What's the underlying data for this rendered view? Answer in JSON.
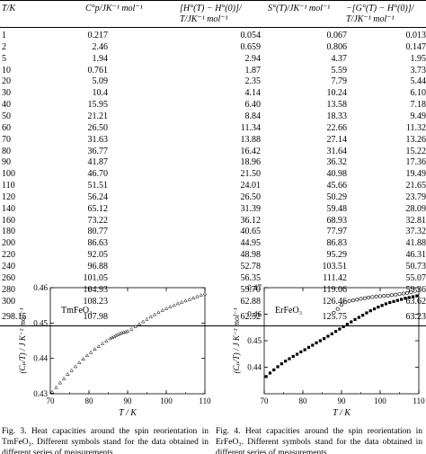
{
  "table": {
    "headers": {
      "t": "T/K",
      "cp": "C°p/JK⁻¹ mol⁻¹",
      "h_line1": "[H°(T) − H°(0)]/",
      "h_line2": "T/JK⁻¹ mol⁻¹",
      "s": "S°(T)/JK⁻¹ mol⁻¹",
      "g_line1": "−[G°(T) − H°(0)]/",
      "g_line2": "T/JK⁻¹ mol⁻¹"
    },
    "rows": [
      [
        "1",
        "0.217",
        "0.054",
        "0.067",
        "0.013"
      ],
      [
        "2",
        "2.46",
        "0.659",
        "0.806",
        "0.147"
      ],
      [
        "5",
        "1.94",
        "2.94",
        "4.37",
        "1.95"
      ],
      [
        "10",
        "0.761",
        "1.87",
        "5.59",
        "3.73"
      ],
      [
        "20",
        "5.09",
        "2.35",
        "7.79",
        "5.44"
      ],
      [
        "30",
        "10.4",
        "4.14",
        "10.24",
        "6.10"
      ],
      [
        "40",
        "15.95",
        "6.40",
        "13.58",
        "7.18"
      ],
      [
        "50",
        "21.21",
        "8.84",
        "18.33",
        "9.49"
      ],
      [
        "60",
        "26.50",
        "11.34",
        "22.66",
        "11.32"
      ],
      [
        "70",
        "31.63",
        "13.88",
        "27.14",
        "13.26"
      ],
      [
        "80",
        "36.77",
        "16.42",
        "31.64",
        "15.22"
      ],
      [
        "90",
        "41.87",
        "18.96",
        "36.32",
        "17.36"
      ],
      [
        "100",
        "46.70",
        "21.50",
        "40.98",
        "19.49"
      ],
      [
        "110",
        "51.51",
        "24.01",
        "45.66",
        "21.65"
      ],
      [
        "120",
        "56.24",
        "26.50",
        "50.29",
        "23.79"
      ],
      [
        "140",
        "65.12",
        "31.39",
        "59.48",
        "28.09"
      ],
      [
        "160",
        "73.22",
        "36.12",
        "68.93",
        "32.81"
      ],
      [
        "180",
        "80.77",
        "40.65",
        "77.97",
        "37.32"
      ],
      [
        "200",
        "86.63",
        "44.95",
        "86.83",
        "41.88"
      ],
      [
        "220",
        "92.05",
        "48.98",
        "95.29",
        "46.31"
      ],
      [
        "240",
        "96.88",
        "52.78",
        "103.51",
        "50.73"
      ],
      [
        "260",
        "101.05",
        "56.35",
        "111.42",
        "55.07"
      ],
      [
        "280",
        "104.93",
        "59.70",
        "119.06",
        "59.36"
      ],
      [
        "300",
        "108.23",
        "62.88",
        "126.46",
        "63.62"
      ]
    ],
    "final_row": [
      "298.15",
      "107.98",
      "62.52",
      "125.75",
      "63.23"
    ]
  },
  "figure3": {
    "inset_label": "TmFeO₃",
    "ylabel": "(Cₚ/T) / J K⁻² mol⁻¹",
    "xlabel": "T / K",
    "caption": "Fig. 3. Heat capacities around the spin reorientation in TmFeO₃. Different symbols stand for the data obtained in different series of measurements.",
    "chart_data": {
      "type": "scatter",
      "xlim": [
        70,
        110
      ],
      "ylim": [
        0.43,
        0.46
      ],
      "xticks": [
        "70",
        "80",
        "90",
        "100",
        "110"
      ],
      "yticks": [
        "0.43",
        "0.44",
        "0.45",
        "0.46"
      ],
      "series": [
        {
          "x": [
            70.5,
            71.5,
            72.5,
            73.5,
            74.5,
            75.5,
            76.5,
            77.5,
            78.5,
            79.5,
            80.5,
            81.5,
            82.5,
            83.5,
            84.5,
            85.5,
            86,
            86.5,
            87,
            87.5,
            88,
            88.5,
            89,
            89.5,
            90,
            91,
            92,
            93,
            94,
            95,
            96,
            97,
            98,
            99,
            100,
            101,
            102,
            103,
            104,
            105,
            106,
            107,
            108,
            109,
            110
          ],
          "y": [
            0.4305,
            0.4318,
            0.4331,
            0.4343,
            0.4355,
            0.4366,
            0.4377,
            0.4388,
            0.4398,
            0.4408,
            0.4417,
            0.4426,
            0.4434,
            0.4442,
            0.4449,
            0.4456,
            0.4459,
            0.4462,
            0.4465,
            0.4467,
            0.447,
            0.4472,
            0.4474,
            0.4475,
            0.4477,
            0.4483,
            0.449,
            0.4497,
            0.4504,
            0.4511,
            0.4518,
            0.4524,
            0.453,
            0.4536,
            0.4541,
            0.4546,
            0.455,
            0.4555,
            0.4559,
            0.4563,
            0.4567,
            0.4571,
            0.4575,
            0.4579,
            0.4583
          ]
        }
      ]
    }
  },
  "figure4": {
    "inset_label": "ErFeO₃",
    "ylabel": "(Cₚ/T) / J K⁻² mol⁻¹",
    "xlabel": "T / K",
    "caption": "Fig. 4. Heat capacities around the spin reorientation in ErFeO₃. Different symbols stand for the data obtained in different series of measurements.",
    "chart_data": {
      "type": "scatter",
      "xlim": [
        70,
        110
      ],
      "ylim": [
        0.43,
        0.47
      ],
      "xticks": [
        "70",
        "80",
        "90",
        "100",
        "110"
      ],
      "yticks": [
        "0.44",
        "0.45",
        "0.46",
        "0.47"
      ],
      "series": [
        {
          "marker": "open-circle",
          "x": [
            88,
            89,
            90,
            91,
            92,
            93,
            94,
            95,
            96,
            97,
            98,
            99,
            100,
            101,
            102,
            103,
            104,
            105,
            106,
            107,
            108,
            109
          ],
          "y": [
            0.4605,
            0.462,
            0.4635,
            0.4645,
            0.465,
            0.4652,
            0.4655,
            0.4658,
            0.466,
            0.4663,
            0.4665,
            0.4667,
            0.4668,
            0.4669,
            0.467,
            0.4672,
            0.4674,
            0.4676,
            0.4678,
            0.468,
            0.4683,
            0.4688
          ]
        },
        {
          "marker": "filled-square",
          "x": [
            70.5,
            71.5,
            72.5,
            73.5,
            74.5,
            75.5,
            76.5,
            77.5,
            78.5,
            79.5,
            80.5,
            81.5,
            82.5,
            83.5,
            84.5,
            85.5,
            86.5,
            87.5,
            88.5,
            89.5,
            90.5,
            91.5,
            92.5,
            93.5,
            94.5,
            95.5,
            96.5,
            97.5,
            98.5,
            99.5,
            100.5,
            101.5,
            102.5,
            103.5,
            104.5,
            105.5,
            106.5,
            107.5,
            108.5,
            109.5
          ],
          "y": [
            0.4365,
            0.4378,
            0.439,
            0.4402,
            0.4413,
            0.4423,
            0.4432,
            0.4441,
            0.4449,
            0.4458,
            0.4466,
            0.4475,
            0.4483,
            0.4492,
            0.45,
            0.4508,
            0.4517,
            0.4526,
            0.4535,
            0.4544,
            0.4553,
            0.4562,
            0.4571,
            0.458,
            0.4588,
            0.4596,
            0.4605,
            0.4613,
            0.462,
            0.4627,
            0.4633,
            0.4639,
            0.4644,
            0.4648,
            0.4652,
            0.4656,
            0.466,
            0.4663,
            0.4666,
            0.4669
          ]
        }
      ]
    }
  }
}
